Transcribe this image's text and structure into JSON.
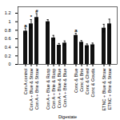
{
  "chart_data": {
    "type": "bar",
    "xlabel": "Digestate",
    "color": "#111111",
    "ylim": [
      0,
      1.35
    ],
    "yticks": [
      0,
      0.2,
      0.4,
      0.6,
      0.8,
      1,
      1.2
    ],
    "groups": [
      {
        "categories": [
          "Con A\ncontrol",
          "Con A +\nBlue &\nStraw",
          "Con A +\nBrie &\nStraw"
        ],
        "values": [
          0.78,
          0.95,
          1.1
        ],
        "errors": [
          0.07,
          0.1,
          0.09
        ],
        "annotations": [
          "a",
          "*",
          "#"
        ]
      },
      {
        "categories": [
          "Con A +\nBlue &\nRasp",
          "Con A +\nBrie &\nRasp",
          "Con A +\nBlue &\nBlue",
          "Con A +\nBrie &\nBlue"
        ],
        "values": [
          1.0,
          0.62,
          0.45,
          0.5
        ],
        "errors": [
          0.05,
          0.06,
          0.04,
          0.05
        ],
        "annotations": [
          null,
          null,
          null,
          null
        ]
      },
      {
        "categories": [
          "Conc &\nBlue",
          "Conc &\nBrie",
          "Conc &\nChed",
          "Conc &\nGouda"
        ],
        "values": [
          0.68,
          0.52,
          0.44,
          0.46
        ],
        "errors": [
          0.05,
          0.04,
          0.04,
          0.04
        ],
        "annotations": [
          "a",
          null,
          null,
          null
        ]
      },
      {
        "categories": [
          "ETNC +\nBlue &\nStraw",
          "ETNC +\nBrie &\nStraw"
        ],
        "values": [
          0.85,
          0.95
        ],
        "errors": [
          0.09,
          0.11
        ],
        "annotations": [
          null,
          null
        ]
      }
    ]
  }
}
